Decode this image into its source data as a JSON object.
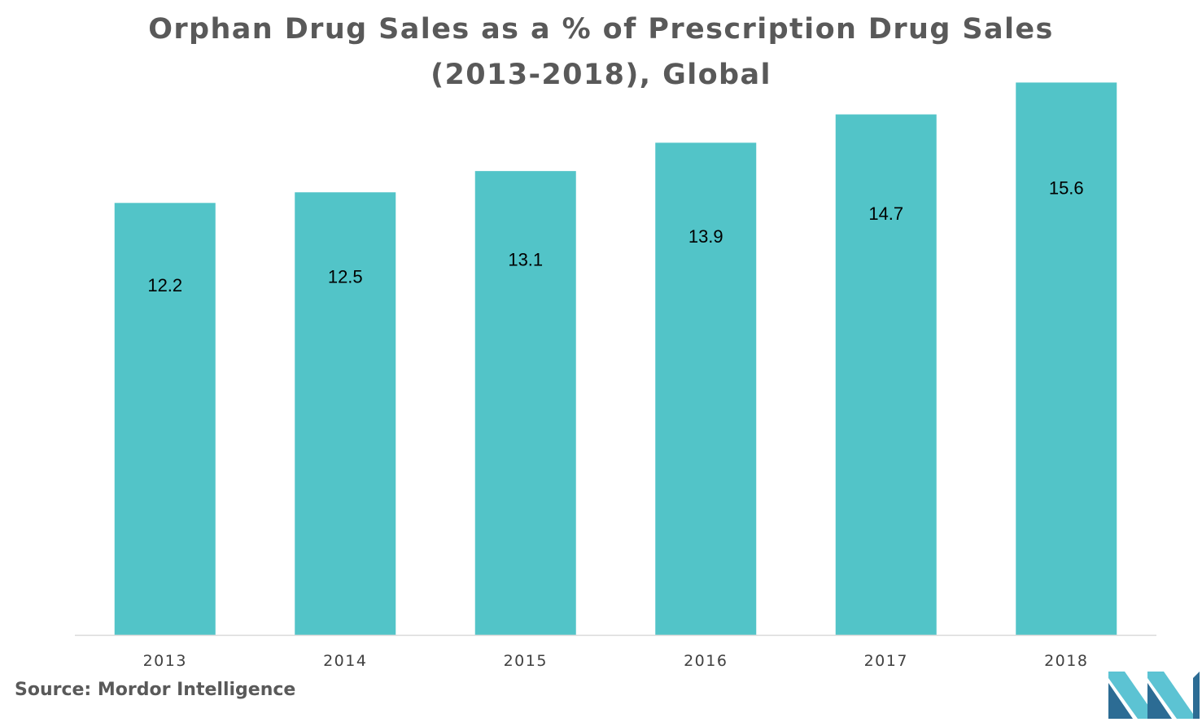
{
  "chart_data": {
    "type": "bar",
    "title": "Orphan Drug Sales as a % of Prescription Drug Sales (2013-2018), Global",
    "title_lines": [
      "Orphan Drug Sales as a % of Prescription Drug Sales",
      "(2013-2018), Global"
    ],
    "categories": [
      "2013",
      "2014",
      "2015",
      "2016",
      "2017",
      "2018"
    ],
    "values": [
      12.2,
      12.5,
      13.1,
      13.9,
      14.7,
      15.6
    ],
    "data_labels": [
      "12.2",
      "12.5",
      "13.1",
      "13.9",
      "14.7",
      "15.6"
    ],
    "xlabel": "",
    "ylabel": "",
    "ylim": [
      0,
      16
    ],
    "grid": false,
    "legend": "none",
    "bar_color": "#52C4C8"
  },
  "source": "Source: Mordor Intelligence",
  "colors": {
    "title": "#595959",
    "axis": "#D9D9D9",
    "tick_label": "#404040",
    "data_label": "#000000",
    "logo_dark": "#2C6C94",
    "logo_light": "#5CC3D3"
  }
}
